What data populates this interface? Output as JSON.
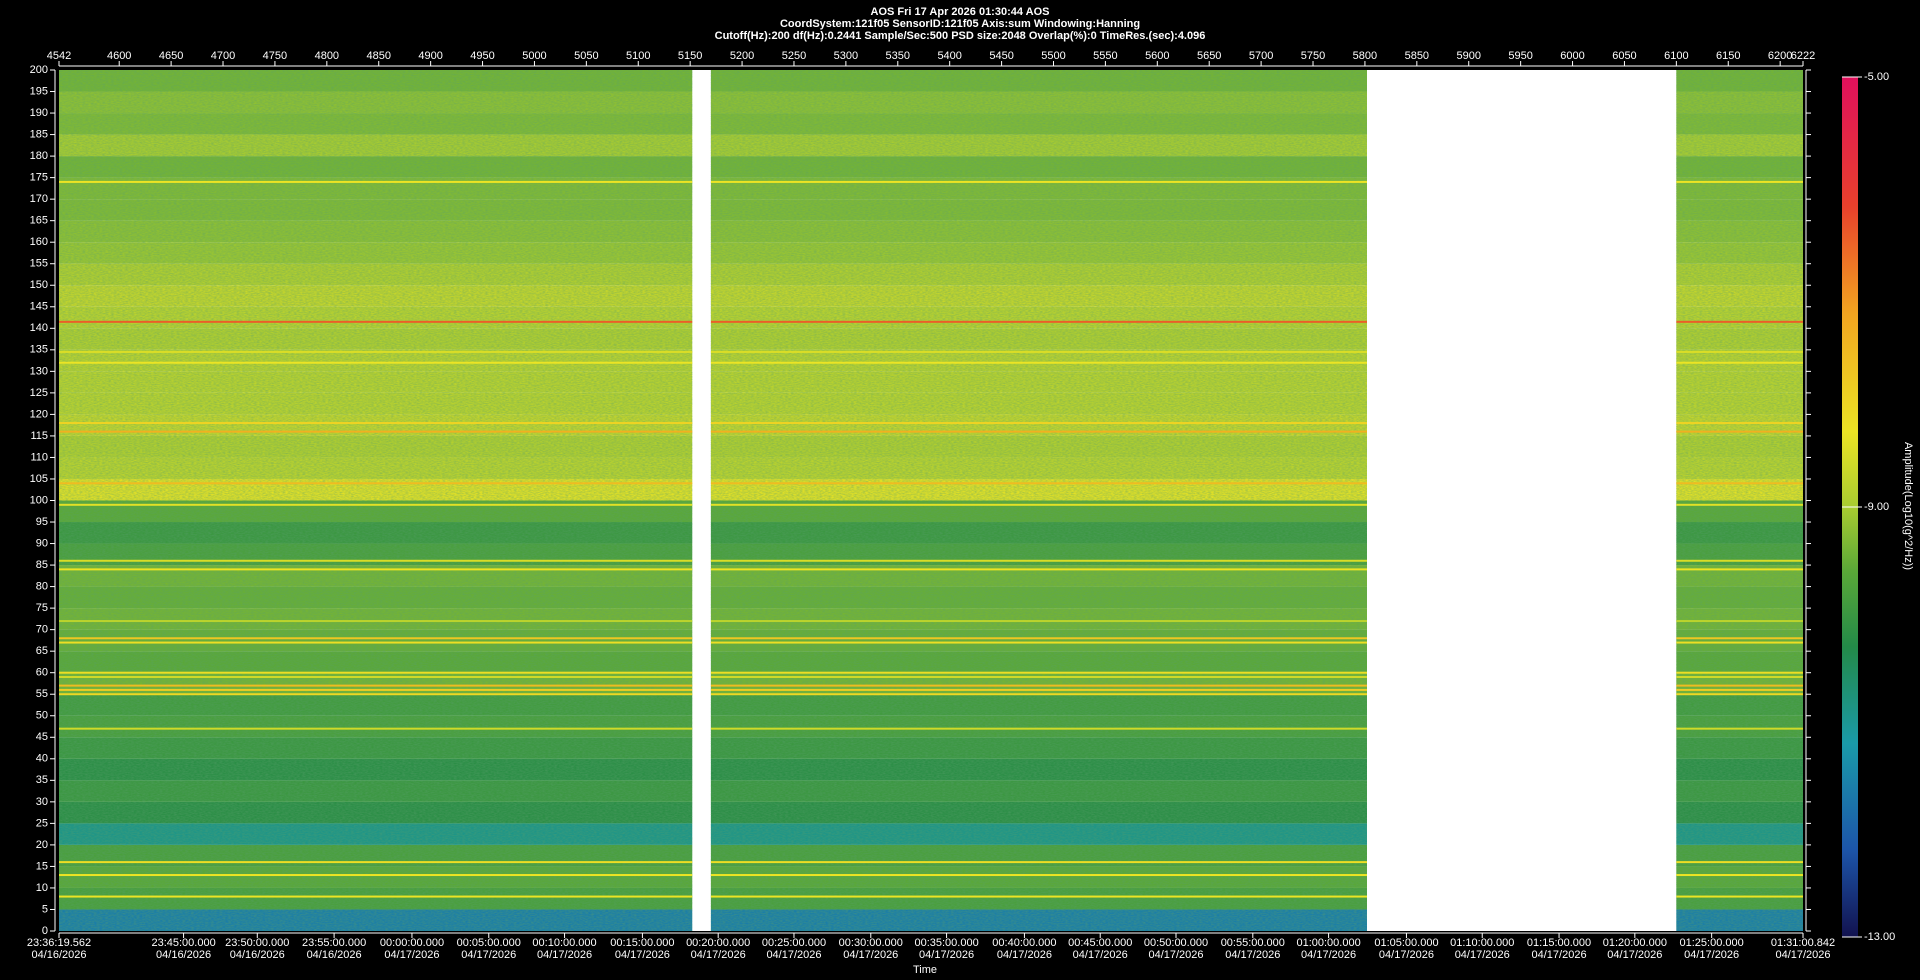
{
  "chart_data": {
    "type": "spectrogram",
    "title": "AOS  Fri 17 Apr 2026 01:30:44  AOS",
    "subtitles": [
      "CoordSystem:121f05   SensorID:121f05   Axis:sum   Windowing:Hanning",
      "Cutoff(Hz):200     df(Hz):0.2441     Sample/Sec:500     PSD size:2048     Overlap(%):0     TimeRes.(sec):4.096"
    ],
    "xlabel": "Time",
    "colorbar_label": "Amplitude(Log10(g^2/Hz))",
    "xlim": [
      4542,
      6222
    ],
    "xticks": [
      4542,
      4600,
      4650,
      4700,
      4750,
      4800,
      4850,
      4900,
      4950,
      5000,
      5050,
      5100,
      5150,
      5200,
      5250,
      5300,
      5350,
      5400,
      5450,
      5500,
      5550,
      5600,
      5650,
      5700,
      5750,
      5800,
      5850,
      5900,
      5950,
      6000,
      6050,
      6100,
      6150,
      6200,
      6222
    ],
    "time_ticks": [
      {
        "value": 4542,
        "label": "23:36:19.562",
        "date": "04/16/2026"
      },
      {
        "value": 4662,
        "label": "23:45:00.000",
        "date": "04/16/2026"
      },
      {
        "value": 4733,
        "label": "23:50:00.000",
        "date": "04/16/2026"
      },
      {
        "value": 4807,
        "label": "23:55:00.000",
        "date": "04/16/2026"
      },
      {
        "value": 4882,
        "label": "00:00:00.000",
        "date": "04/17/2026"
      },
      {
        "value": 4956,
        "label": "00:05:00.000",
        "date": "04/17/2026"
      },
      {
        "value": 5029,
        "label": "00:10:00.000",
        "date": "04/17/2026"
      },
      {
        "value": 5104,
        "label": "00:15:00.000",
        "date": "04/17/2026"
      },
      {
        "value": 5177,
        "label": "00:20:00.000",
        "date": "04/17/2026"
      },
      {
        "value": 5250,
        "label": "00:25:00.000",
        "date": "04/17/2026"
      },
      {
        "value": 5324,
        "label": "00:30:00.000",
        "date": "04/17/2026"
      },
      {
        "value": 5397,
        "label": "00:35:00.000",
        "date": "04/17/2026"
      },
      {
        "value": 5472,
        "label": "00:40:00.000",
        "date": "04/17/2026"
      },
      {
        "value": 5545,
        "label": "00:45:00.000",
        "date": "04/17/2026"
      },
      {
        "value": 5618,
        "label": "00:50:00.000",
        "date": "04/17/2026"
      },
      {
        "value": 5692,
        "label": "00:55:00.000",
        "date": "04/17/2026"
      },
      {
        "value": 5765,
        "label": "01:00:00.000",
        "date": "04/17/2026"
      },
      {
        "value": 5840,
        "label": "01:05:00.000",
        "date": "04/17/2026"
      },
      {
        "value": 5913,
        "label": "01:10:00.000",
        "date": "04/17/2026"
      },
      {
        "value": 5987,
        "label": "01:15:00.000",
        "date": "04/17/2026"
      },
      {
        "value": 6060,
        "label": "01:20:00.000",
        "date": "04/17/2026"
      },
      {
        "value": 6134,
        "label": "01:25:00.000",
        "date": "04/17/2026"
      },
      {
        "value": 6222,
        "label": "01:31:00.842",
        "date": "04/17/2026"
      }
    ],
    "ylim": [
      0,
      200
    ],
    "yticks": [
      0,
      5,
      10,
      15,
      20,
      25,
      30,
      35,
      40,
      45,
      50,
      55,
      60,
      65,
      70,
      75,
      80,
      85,
      90,
      95,
      100,
      105,
      110,
      115,
      120,
      125,
      130,
      135,
      140,
      145,
      150,
      155,
      160,
      165,
      170,
      175,
      180,
      185,
      190,
      195,
      200
    ],
    "segments": [
      [
        4542,
        5152
      ],
      [
        5170,
        5802
      ],
      [
        6100,
        6222
      ]
    ],
    "bands": {
      "edges": [
        0,
        5,
        10,
        15,
        20,
        25,
        30,
        35,
        40,
        45,
        50,
        55,
        60,
        65,
        70,
        75,
        80,
        85,
        90,
        95,
        100,
        105,
        110,
        115,
        120,
        125,
        130,
        135,
        140,
        145,
        150,
        155,
        160,
        165,
        170,
        175,
        180,
        185,
        190,
        195,
        200
      ],
      "values": [
        -11.6,
        -9.8,
        -9.6,
        -9.8,
        -10.9,
        -10.2,
        -10.0,
        -10.2,
        -10.0,
        -9.8,
        -9.9,
        -9.4,
        -9.6,
        -9.5,
        -9.4,
        -9.5,
        -9.4,
        -9.8,
        -10.0,
        -9.6,
        -8.4,
        -8.8,
        -8.9,
        -8.7,
        -8.8,
        -8.8,
        -8.8,
        -8.9,
        -8.8,
        -8.7,
        -8.9,
        -9.1,
        -9.2,
        -9.3,
        -9.3,
        -9.4,
        -9.0,
        -9.3,
        -9.2,
        -9.4
      ]
    },
    "lines": {
      "frequencies": [
        174,
        141.5,
        134.5,
        132,
        118,
        116,
        104,
        99,
        86,
        84,
        72,
        68,
        67,
        60,
        59,
        57,
        56,
        55,
        47,
        16,
        13,
        8
      ],
      "values": [
        -8.3,
        -6.5,
        -8.5,
        -8.3,
        -8.0,
        -7.4,
        -7.6,
        -8.4,
        -8.5,
        -8.3,
        -8.8,
        -7.8,
        -8.2,
        -8.2,
        -8.6,
        -7.6,
        -7.9,
        -8.1,
        -8.6,
        -8.2,
        -8.3,
        -8.3
      ]
    },
    "clim": [
      -13,
      -5
    ],
    "cticks": [
      {
        "value": -5,
        "label": "-5.00"
      },
      {
        "value": -9,
        "label": "-9.00"
      },
      {
        "value": -13,
        "label": "-13.00"
      }
    ],
    "colormap": [
      {
        "value": -13,
        "color": "#12124f"
      },
      {
        "value": -12.2,
        "color": "#1c54a8"
      },
      {
        "value": -11.2,
        "color": "#1a9aa8"
      },
      {
        "value": -10.3,
        "color": "#238a48"
      },
      {
        "value": -9.6,
        "color": "#5aa838"
      },
      {
        "value": -9,
        "color": "#a8cc30"
      },
      {
        "value": -8.3,
        "color": "#ece424"
      },
      {
        "value": -7.2,
        "color": "#f2a420"
      },
      {
        "value": -6.2,
        "color": "#e8402c"
      },
      {
        "value": -5,
        "color": "#e0105c"
      }
    ]
  }
}
